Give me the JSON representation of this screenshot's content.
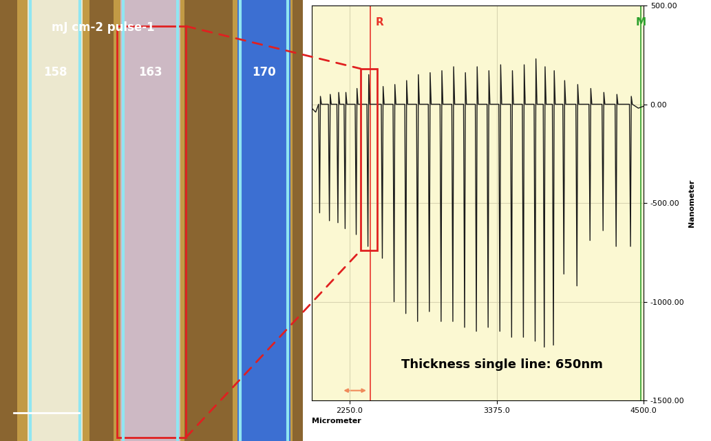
{
  "chart_data": {
    "type": "line",
    "xlabel": "Micrometer",
    "ylabel": "Nanometer",
    "x": [
      1960,
      1990,
      2012,
      2020,
      2026,
      2034,
      2087,
      2095,
      2101,
      2109,
      2152,
      2160,
      2166,
      2174,
      2207,
      2215,
      2221,
      2229,
      2292,
      2300,
      2306,
      2314,
      2382,
      2390,
      2396,
      2404,
      2492,
      2500,
      2506,
      2514,
      2582,
      2590,
      2596,
      2604,
      2672,
      2680,
      2686,
      2694,
      2762,
      2770,
      2776,
      2784,
      2852,
      2860,
      2866,
      2874,
      2942,
      2950,
      2956,
      2964,
      3032,
      3040,
      3046,
      3054,
      3122,
      3130,
      3136,
      3144,
      3212,
      3220,
      3226,
      3234,
      3302,
      3310,
      3316,
      3324,
      3392,
      3400,
      3406,
      3414,
      3482,
      3490,
      3496,
      3504,
      3572,
      3580,
      3586,
      3594,
      3662,
      3670,
      3676,
      3684,
      3732,
      3740,
      3746,
      3754,
      3802,
      3810,
      3816,
      3824,
      3882,
      3890,
      3896,
      3904,
      3982,
      3990,
      3996,
      4004,
      4082,
      4090,
      4096,
      4104,
      4182,
      4190,
      4196,
      4204,
      4282,
      4290,
      4296,
      4304,
      4392,
      4400,
      4406,
      4414,
      4460,
      4500
    ],
    "values": [
      -20,
      -40,
      0,
      -550,
      40,
      0,
      0,
      -590,
      50,
      0,
      0,
      -600,
      60,
      0,
      0,
      -630,
      60,
      0,
      0,
      -660,
      80,
      0,
      0,
      -720,
      150,
      0,
      0,
      -780,
      90,
      0,
      0,
      -1000,
      100,
      0,
      0,
      -1060,
      120,
      0,
      0,
      -1100,
      150,
      0,
      0,
      -1050,
      160,
      0,
      0,
      -1100,
      170,
      0,
      0,
      -1100,
      190,
      0,
      0,
      -1130,
      160,
      0,
      0,
      -1150,
      190,
      0,
      0,
      -1130,
      170,
      0,
      0,
      -1150,
      200,
      0,
      0,
      -1180,
      170,
      0,
      0,
      -1180,
      200,
      0,
      0,
      -1200,
      230,
      0,
      0,
      -1230,
      190,
      0,
      0,
      -1220,
      170,
      0,
      0,
      -860,
      120,
      0,
      0,
      -920,
      100,
      0,
      0,
      -690,
      80,
      0,
      0,
      -640,
      60,
      0,
      0,
      -720,
      50,
      0,
      0,
      -720,
      40,
      0,
      -20,
      -10
    ],
    "color": "#1a1a1a",
    "xlim": [
      1960,
      4500
    ],
    "ylim": [
      -1500,
      500
    ],
    "xticks": [
      {
        "value": 2250,
        "label": "2250.0"
      },
      {
        "value": 3375,
        "label": "3375.0"
      },
      {
        "value": 4500,
        "label": "4500.0"
      }
    ],
    "yticks": [
      {
        "value": -1500,
        "label": "-1500.00"
      },
      {
        "value": -1000,
        "label": "-1000.00"
      },
      {
        "value": -500,
        "label": "-500.00"
      },
      {
        "value": 0,
        "label": "0.00"
      },
      {
        "value": 500,
        "label": "500.00"
      }
    ],
    "grid": true,
    "markers": [
      {
        "label": "R",
        "x": 2410,
        "color": "#e8342a"
      },
      {
        "label": "M",
        "x": 4480,
        "color": "#2ca02c"
      }
    ],
    "annotations": [
      "Thickness single line: 650nm"
    ]
  },
  "micrograph": {
    "heading": "mJ cm-2 pulse-1",
    "track_labels": [
      "158",
      "163",
      "170"
    ]
  }
}
